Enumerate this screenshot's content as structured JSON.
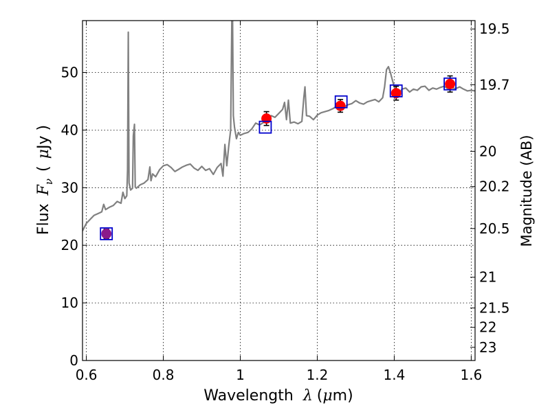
{
  "chart_data": {
    "type": "scatter",
    "xlabel": "Wavelength",
    "xlabel_symbol": "λ",
    "xlabel_unit_open": "(",
    "xlabel_unit_mu": "μ",
    "xlabel_unit_rest": "m)",
    "ylabel": "Flux",
    "ylabel_symbol": "F",
    "ylabel_subscript": "ν",
    "ylabel_unit_open": "(",
    "ylabel_unit_mu": "μ",
    "ylabel_unit_rest": "Jy )",
    "y2label": "Magnitude (AB)",
    "xlim": [
      0.59,
      1.61
    ],
    "ylim": [
      0,
      59
    ],
    "grid": true,
    "x_ticks": [
      {
        "value": 0.6,
        "label": "0.6"
      },
      {
        "value": 0.8,
        "label": "0.8"
      },
      {
        "value": 1.0,
        "label": "1"
      },
      {
        "value": 1.2,
        "label": "1.2"
      },
      {
        "value": 1.4,
        "label": "1.4"
      },
      {
        "value": 1.6,
        "label": "1.6"
      }
    ],
    "y_ticks": [
      {
        "value": 0,
        "label": "0"
      },
      {
        "value": 10,
        "label": "10"
      },
      {
        "value": 20,
        "label": "20"
      },
      {
        "value": 30,
        "label": "30"
      },
      {
        "value": 40,
        "label": "40"
      },
      {
        "value": 50,
        "label": "50"
      }
    ],
    "y2_ticks": [
      {
        "mag": 19.5,
        "label": "19.5"
      },
      {
        "mag": 19.7,
        "label": "19.7"
      },
      {
        "mag": 20,
        "label": "20"
      },
      {
        "mag": 20.2,
        "label": "20.2"
      },
      {
        "mag": 20.5,
        "label": "20.5"
      },
      {
        "mag": 21,
        "label": "21"
      },
      {
        "mag": 21.5,
        "label": "21.5"
      },
      {
        "mag": 22,
        "label": "22"
      },
      {
        "mag": 23,
        "label": "23"
      }
    ],
    "series": [
      {
        "kind": "spectrum",
        "color": "#808080",
        "x": [
          0.59,
          0.6,
          0.61,
          0.62,
          0.63,
          0.64,
          0.645,
          0.65,
          0.66,
          0.67,
          0.68,
          0.69,
          0.695,
          0.7,
          0.705,
          0.707,
          0.709,
          0.711,
          0.715,
          0.72,
          0.722,
          0.725,
          0.727,
          0.73,
          0.74,
          0.75,
          0.76,
          0.765,
          0.768,
          0.772,
          0.78,
          0.79,
          0.8,
          0.81,
          0.82,
          0.83,
          0.84,
          0.85,
          0.86,
          0.87,
          0.88,
          0.89,
          0.9,
          0.91,
          0.92,
          0.93,
          0.94,
          0.95,
          0.955,
          0.96,
          0.965,
          0.97,
          0.975,
          0.978,
          0.98,
          0.982,
          0.985,
          0.99,
          0.995,
          1.0,
          1.01,
          1.02,
          1.03,
          1.04,
          1.05,
          1.06,
          1.07,
          1.08,
          1.09,
          1.1,
          1.11,
          1.115,
          1.12,
          1.125,
          1.13,
          1.14,
          1.15,
          1.16,
          1.165,
          1.168,
          1.172,
          1.18,
          1.19,
          1.2,
          1.21,
          1.22,
          1.23,
          1.24,
          1.25,
          1.26,
          1.27,
          1.28,
          1.29,
          1.3,
          1.31,
          1.32,
          1.33,
          1.34,
          1.35,
          1.36,
          1.37,
          1.375,
          1.38,
          1.385,
          1.39,
          1.4,
          1.41,
          1.42,
          1.43,
          1.44,
          1.45,
          1.46,
          1.47,
          1.48,
          1.49,
          1.5,
          1.51,
          1.52,
          1.53,
          1.54,
          1.55,
          1.56,
          1.57,
          1.58,
          1.59,
          1.6,
          1.61
        ],
        "y": [
          22.5,
          23.8,
          24.5,
          25.2,
          25.5,
          25.8,
          27.1,
          26.2,
          26.6,
          26.9,
          27.6,
          27.3,
          29.2,
          28.1,
          28.6,
          33.0,
          57.0,
          30.8,
          29.6,
          29.9,
          39.0,
          41.0,
          30.1,
          29.9,
          30.5,
          30.8,
          31.4,
          33.6,
          31.2,
          32.4,
          31.9,
          33.1,
          33.8,
          34.0,
          33.5,
          32.8,
          33.2,
          33.6,
          33.9,
          34.1,
          33.4,
          33.0,
          33.7,
          33.0,
          33.3,
          32.3,
          33.5,
          34.2,
          32.0,
          37.5,
          33.8,
          37.2,
          40.0,
          59.0,
          59.0,
          42.5,
          40.5,
          38.5,
          39.6,
          39.1,
          39.4,
          39.6,
          40.2,
          41.2,
          40.9,
          41.3,
          41.8,
          42.5,
          42.2,
          42.9,
          43.6,
          44.8,
          41.8,
          45.2,
          41.2,
          41.4,
          41.1,
          41.5,
          45.6,
          47.5,
          42.5,
          42.4,
          41.8,
          42.6,
          43.0,
          43.2,
          43.4,
          43.7,
          44.1,
          44.3,
          44.0,
          44.4,
          44.6,
          45.1,
          44.7,
          44.5,
          44.9,
          45.1,
          45.3,
          44.9,
          45.6,
          47.5,
          50.5,
          51.0,
          50.0,
          47.5,
          45.9,
          47.1,
          47.3,
          46.6,
          47.1,
          46.9,
          47.5,
          47.6,
          46.9,
          47.3,
          47.1,
          47.4,
          47.6,
          47.1,
          47.3,
          47.2,
          47.5,
          47.1,
          46.8,
          46.9,
          46.8
        ]
      },
      {
        "kind": "model_photometry",
        "marker": "open-square",
        "color": "#0000cc",
        "x": [
          0.652,
          1.065,
          1.262,
          1.405,
          1.545
        ],
        "y": [
          22.0,
          40.5,
          44.9,
          46.8,
          48.0
        ]
      },
      {
        "kind": "observed_photometry",
        "marker": "filled-circle",
        "colors": [
          "#8b1a8b",
          "#ff0000",
          "#ff0000",
          "#ff0000",
          "#ff0000"
        ],
        "x": [
          0.652,
          1.068,
          1.26,
          1.405,
          1.545
        ],
        "y": [
          22.0,
          42.0,
          44.2,
          46.4,
          48.0
        ],
        "yerr": [
          0.8,
          1.2,
          1.1,
          1.2,
          1.4
        ]
      }
    ]
  }
}
